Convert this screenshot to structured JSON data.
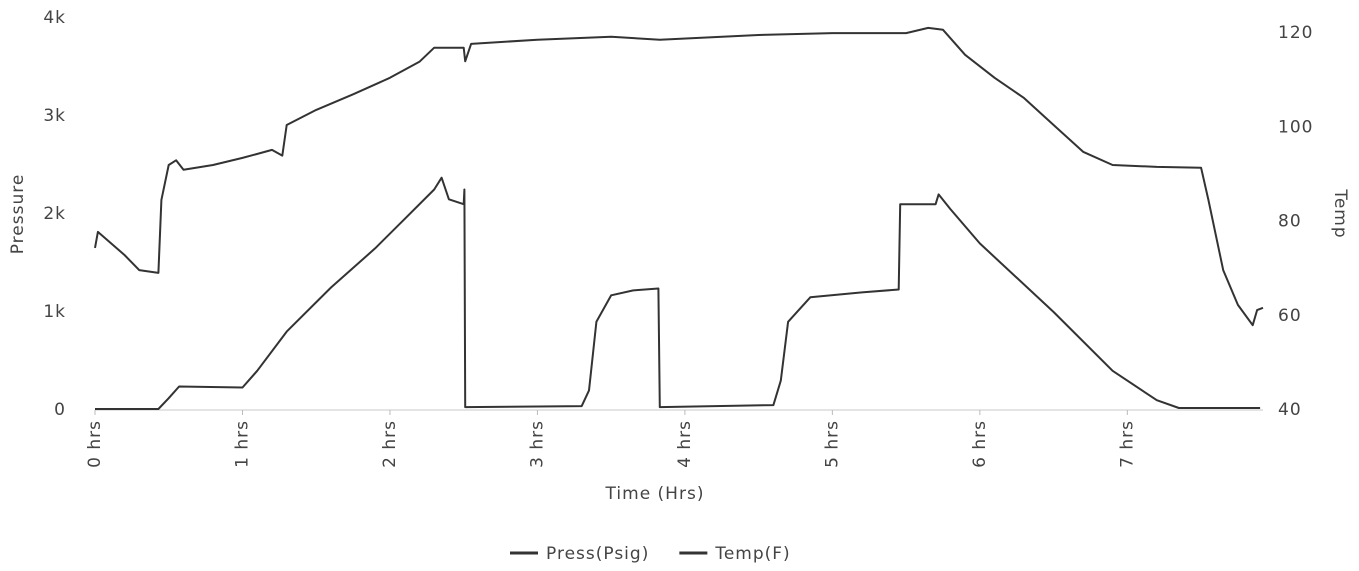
{
  "chart_data": {
    "type": "line",
    "x_label": "Time (Hrs)",
    "y_label": "Pressure",
    "y2_label": "Temp",
    "xlim": [
      0,
      7.92
    ],
    "xticks": [
      {
        "value": 0,
        "label": "0 hrs"
      },
      {
        "value": 1,
        "label": "1 hrs"
      },
      {
        "value": 2,
        "label": "2 hrs"
      },
      {
        "value": 3,
        "label": "3 hrs"
      },
      {
        "value": 4,
        "label": "4 hrs"
      },
      {
        "value": 5,
        "label": "5 hrs"
      },
      {
        "value": 6,
        "label": "6 hrs"
      },
      {
        "value": 7,
        "label": "7 hrs"
      }
    ],
    "ylim": [
      0,
      4000
    ],
    "yticks": [
      0,
      {
        "value": 1000,
        "label": "1k"
      },
      {
        "value": 2000,
        "label": "2k"
      },
      {
        "value": 3000,
        "label": "3k"
      },
      {
        "value": 4000,
        "label": "4k"
      }
    ],
    "y2lim": [
      40,
      123.2
    ],
    "y2ticks": [
      40,
      60,
      80,
      100,
      120
    ],
    "series": [
      {
        "name": "Press(Psig)",
        "color": "#333333",
        "x": [
          0,
          0.43,
          0.5,
          0.57,
          1.0,
          1.1,
          1.3,
          1.6,
          1.9,
          2.1,
          2.3,
          2.35,
          2.4,
          2.5,
          2.505,
          2.51,
          3.3,
          3.35,
          3.4,
          3.5,
          3.65,
          3.82,
          3.83,
          4.6,
          4.65,
          4.7,
          4.85,
          5.2,
          5.45,
          5.46,
          5.7,
          5.72,
          5.8,
          6.0,
          6.5,
          6.9,
          7.2,
          7.35,
          7.9
        ],
        "values": [
          10,
          10,
          120,
          240,
          230,
          400,
          800,
          1250,
          1650,
          1950,
          2250,
          2370,
          2150,
          2100,
          2250,
          30,
          40,
          200,
          900,
          1170,
          1220,
          1240,
          30,
          50,
          300,
          900,
          1150,
          1200,
          1230,
          2100,
          2100,
          2200,
          2050,
          1700,
          1000,
          400,
          100,
          20,
          20
        ]
      },
      {
        "name": "Temp(F)",
        "color": "#333333",
        "axis": "y2",
        "x": [
          0,
          0.02,
          0.2,
          0.3,
          0.43,
          0.45,
          0.5,
          0.55,
          0.6,
          0.8,
          1.0,
          1.2,
          1.27,
          1.3,
          1.5,
          1.75,
          2.0,
          2.2,
          2.3,
          2.5,
          2.51,
          2.55,
          3.0,
          3.5,
          3.83,
          4.5,
          5.0,
          5.5,
          5.65,
          5.75,
          5.9,
          6.1,
          6.3,
          6.5,
          6.7,
          6.9,
          7.2,
          7.5,
          7.55,
          7.65,
          7.75,
          7.85,
          7.88,
          7.92
        ],
        "values": [
          74.4,
          77.8,
          72.9,
          69.7,
          69.1,
          84.6,
          92,
          93,
          91,
          92,
          93.5,
          95.2,
          94,
          100.5,
          103.7,
          107,
          110.5,
          113.9,
          116.9,
          116.9,
          114,
          117.7,
          118.6,
          119.2,
          118.6,
          119.6,
          120,
          120,
          121.1,
          120.7,
          115.4,
          110.5,
          106.2,
          100.5,
          94.8,
          92,
          91.6,
          91.4,
          84.6,
          69.7,
          62.3,
          58,
          61.2,
          61.7
        ]
      }
    ]
  }
}
